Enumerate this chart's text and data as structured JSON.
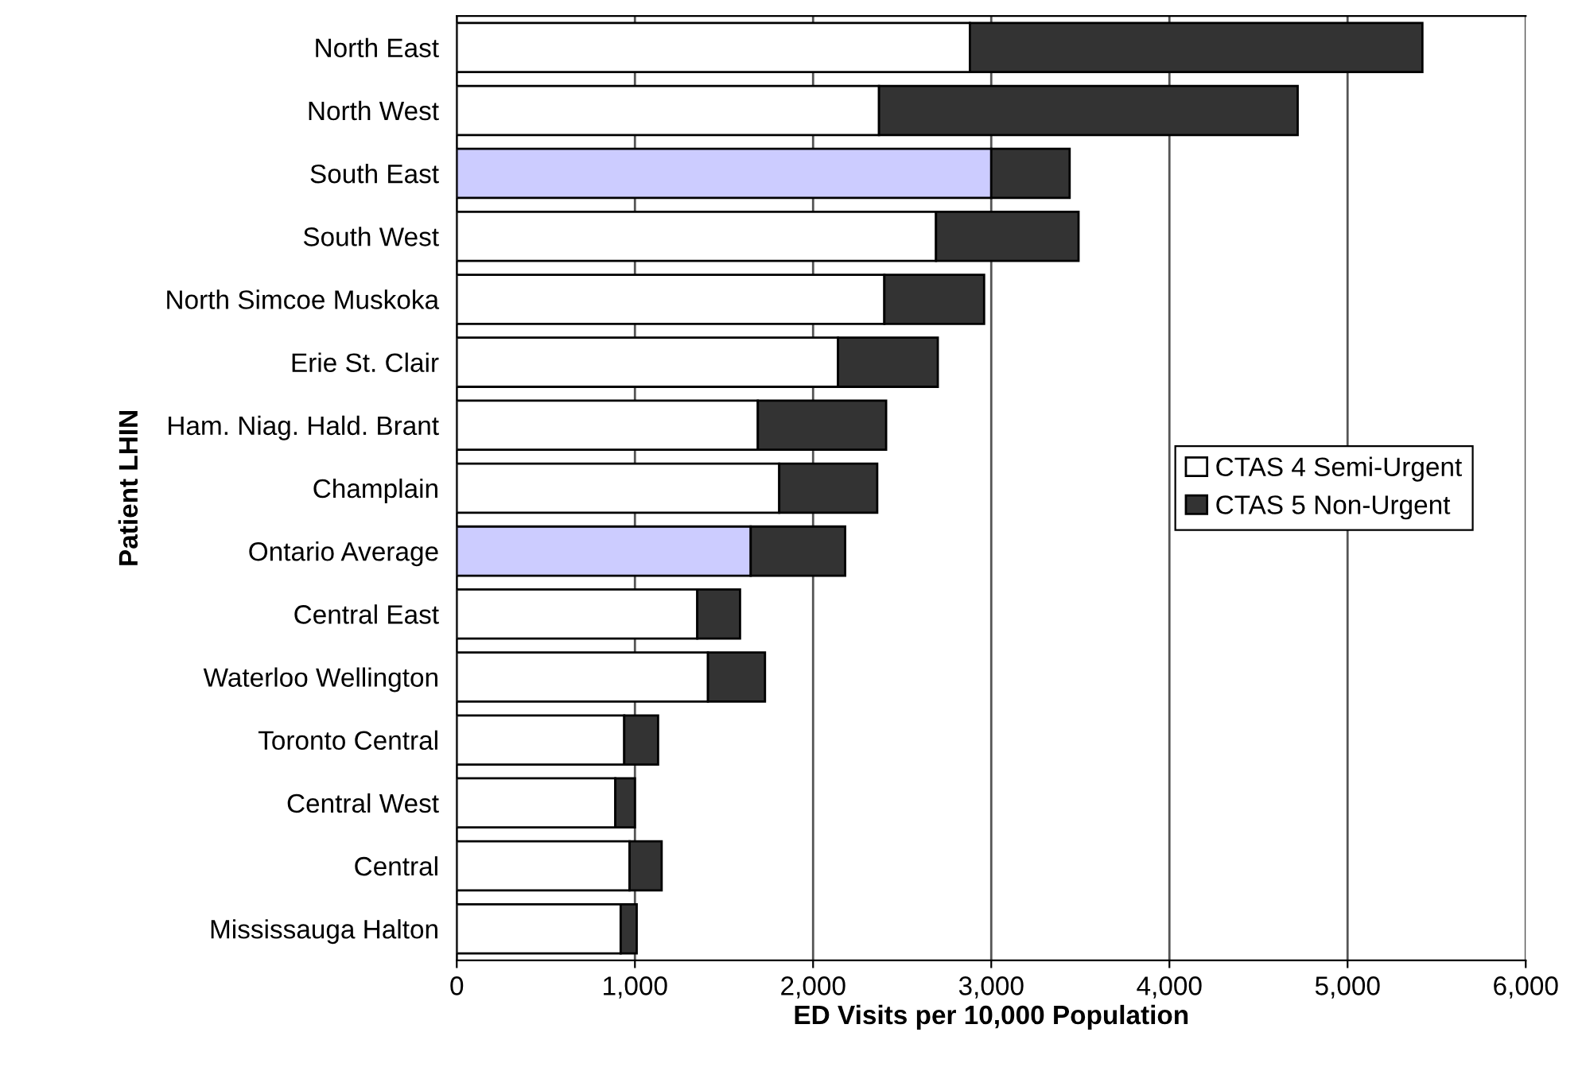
{
  "chart_data": {
    "type": "bar",
    "orientation": "horizontal",
    "stacked": true,
    "categories": [
      "North East",
      "North West",
      "South East",
      "South West",
      "North Simcoe Muskoka",
      "Erie St. Clair",
      "Ham. Niag. Hald. Brant",
      "Champlain",
      "Ontario Average",
      "Central East",
      "Waterloo Wellington",
      "Toronto Central",
      "Central West",
      "Central",
      "Mississauga Halton"
    ],
    "series": [
      {
        "name": "CTAS 4 Semi-Urgent",
        "color": "#ffffff",
        "colors": [
          "#ffffff",
          "#ffffff",
          "#ccccff",
          "#ffffff",
          "#ffffff",
          "#ffffff",
          "#ffffff",
          "#ffffff",
          "#ccccff",
          "#ffffff",
          "#ffffff",
          "#ffffff",
          "#ffffff",
          "#ffffff",
          "#ffffff"
        ],
        "values": [
          2880,
          2370,
          3000,
          2690,
          2400,
          2140,
          1690,
          1810,
          1650,
          1350,
          1410,
          940,
          890,
          970,
          920
        ]
      },
      {
        "name": "CTAS 5 Non-Urgent",
        "color": "#333333",
        "values": [
          2540,
          2350,
          440,
          800,
          560,
          560,
          720,
          550,
          530,
          240,
          320,
          190,
          110,
          180,
          90
        ]
      }
    ],
    "xlabel": "ED Visits per 10,000 Population",
    "ylabel": "Patient LHIN",
    "xlim": [
      0,
      6000
    ],
    "xticks": [
      {
        "value": 0,
        "label": "0"
      },
      {
        "value": 1000,
        "label": "1,000"
      },
      {
        "value": 2000,
        "label": "2,000"
      },
      {
        "value": 3000,
        "label": "3,000"
      },
      {
        "value": 4000,
        "label": "4,000"
      },
      {
        "value": 5000,
        "label": "5,000"
      },
      {
        "value": 6000,
        "label": "6,000"
      }
    ],
    "grid": "x",
    "legend": "center right"
  }
}
